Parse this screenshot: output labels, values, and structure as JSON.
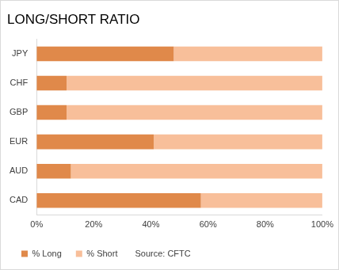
{
  "chart_data": {
    "type": "bar",
    "title": "LONG/SHORT RATIO",
    "orientation": "horizontal",
    "stacked": true,
    "grid": false,
    "legend": "bottom",
    "categories": [
      "JPY",
      "CHF",
      "GBP",
      "EUR",
      "AUD",
      "CAD"
    ],
    "series": [
      {
        "name": "% Long",
        "color": "#e0894a",
        "values": [
          48,
          10.5,
          10.5,
          41,
          12,
          57.5
        ]
      },
      {
        "name": "% Short",
        "color": "#f8bf9a",
        "values": [
          52,
          89.5,
          89.5,
          59,
          88,
          42.5
        ]
      }
    ],
    "xlim": [
      0,
      100
    ],
    "xticks": [
      {
        "value": 0,
        "label": "0%"
      },
      {
        "value": 20,
        "label": "20%"
      },
      {
        "value": 40,
        "label": "40%"
      },
      {
        "value": 60,
        "label": "60%"
      },
      {
        "value": 80,
        "label": "80%"
      },
      {
        "value": 100,
        "label": "100%"
      }
    ],
    "annotations": [
      "Source: CFTC"
    ]
  }
}
